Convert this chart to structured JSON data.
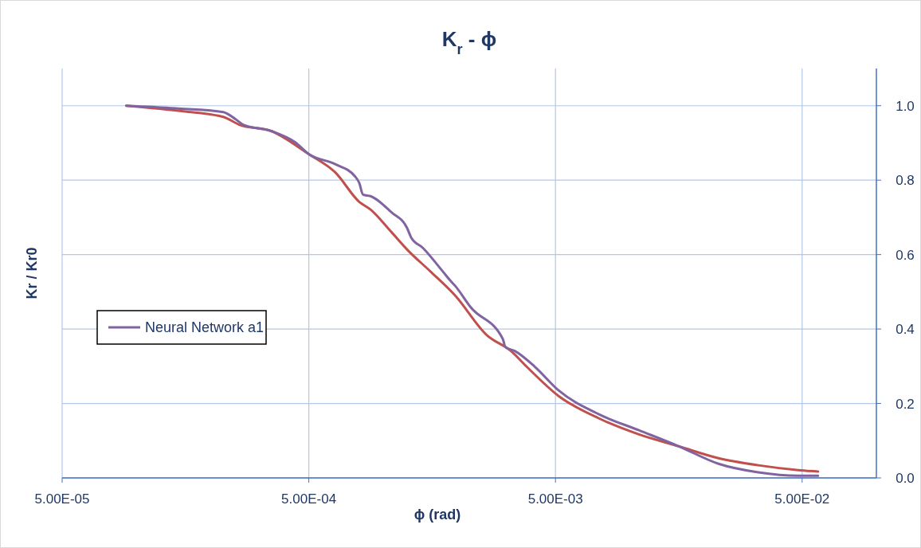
{
  "chart_data": {
    "type": "line",
    "title": "K$_{r}$ - ϕ",
    "xlabel": "ϕ (rad)",
    "ylabel": "Kr / Kr0",
    "log": "x",
    "grid": true,
    "legend": "left",
    "marker": "none",
    "line_style": "solid",
    "xlim": [
      5e-05,
      0.1
    ],
    "ylim": [
      0,
      1.1
    ],
    "xticks": [
      {
        "value": 5e-05,
        "label": "5.00E-05"
      },
      {
        "value": 0.0005,
        "label": "5.00E-04"
      },
      {
        "value": 0.005,
        "label": "5.00E-03"
      },
      {
        "value": 0.05,
        "label": "5.00E-02"
      }
    ],
    "yticks": [
      {
        "value": 0,
        "label": "0.0"
      },
      {
        "value": 0.2,
        "label": "0.2"
      },
      {
        "value": 0.4,
        "label": "0.4"
      },
      {
        "value": 0.6,
        "label": "0.6"
      },
      {
        "value": 0.8,
        "label": "0.8"
      },
      {
        "value": 1,
        "label": "1.0"
      }
    ],
    "series": [
      {
        "color": "#c0504d",
        "x": [
          9.1e-05,
          0.000155,
          0.000225,
          0.000261,
          0.000352,
          0.0005,
          0.00064,
          0.0008,
          0.00089,
          0.00108,
          0.00125,
          0.00156,
          0.00196,
          0.00263,
          0.0033,
          0.00382,
          0.00515,
          0.0075,
          0.0109,
          0.0158,
          0.0229,
          0.0332,
          0.0482,
          0.058
        ],
        "values": [
          1.0,
          0.985,
          0.97,
          0.949,
          0.932,
          0.87,
          0.821,
          0.742,
          0.721,
          0.661,
          0.614,
          0.554,
          0.49,
          0.384,
          0.341,
          0.299,
          0.22,
          0.16,
          0.117,
          0.085,
          0.053,
          0.034,
          0.021,
          0.017
        ]
      },
      {
        "name": "Neural Network a1",
        "color": "#8064a2",
        "x": [
          9.1e-05,
          0.000144,
          0.000225,
          0.000252,
          0.000271,
          0.000352,
          0.00044,
          0.0005,
          0.00064,
          0.00077,
          0.0008,
          0.00083,
          0.00089,
          0.00108,
          0.00125,
          0.0013,
          0.00145,
          0.00175,
          0.00188,
          0.00196,
          0.00227,
          0.00306,
          0.00313,
          0.00342,
          0.00412,
          0.00515,
          0.0075,
          0.0109,
          0.0158,
          0.0229,
          0.0332,
          0.0482,
          0.058
        ],
        "values": [
          1.0,
          0.993,
          0.983,
          0.964,
          0.949,
          0.932,
          0.902,
          0.87,
          0.843,
          0.81,
          0.793,
          0.761,
          0.757,
          0.714,
          0.672,
          0.646,
          0.618,
          0.554,
          0.529,
          0.516,
          0.458,
          0.373,
          0.352,
          0.341,
          0.299,
          0.235,
          0.171,
          0.128,
          0.085,
          0.038,
          0.015,
          0.006,
          0.006
        ]
      }
    ]
  }
}
